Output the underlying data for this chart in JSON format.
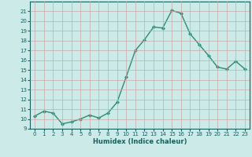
{
  "x": [
    0,
    1,
    2,
    3,
    4,
    5,
    6,
    7,
    8,
    9,
    10,
    11,
    12,
    13,
    14,
    15,
    16,
    17,
    18,
    19,
    20,
    21,
    22,
    23
  ],
  "y": [
    10.3,
    10.8,
    10.6,
    9.5,
    9.7,
    10.0,
    10.4,
    10.1,
    10.6,
    11.7,
    14.3,
    17.0,
    18.1,
    19.4,
    19.3,
    21.1,
    20.8,
    18.7,
    17.6,
    16.5,
    15.3,
    15.1,
    15.9,
    15.1
  ],
  "xlabel": "Humidex (Indice chaleur)",
  "ylabel": "",
  "xlim": [
    -0.5,
    23.5
  ],
  "ylim": [
    9,
    22
  ],
  "yticks": [
    9,
    10,
    11,
    12,
    13,
    14,
    15,
    16,
    17,
    18,
    19,
    20,
    21
  ],
  "xticks": [
    0,
    1,
    2,
    3,
    4,
    5,
    6,
    7,
    8,
    9,
    10,
    11,
    12,
    13,
    14,
    15,
    16,
    17,
    18,
    19,
    20,
    21,
    22,
    23
  ],
  "line_color": "#2e8b75",
  "marker_color": "#2e8b75",
  "bg_color": "#cceae8",
  "grid_color": "#c8a8a8",
  "title_color": "#1a5f5f",
  "xlabel_fontsize": 6.0,
  "tick_fontsize": 5.0
}
